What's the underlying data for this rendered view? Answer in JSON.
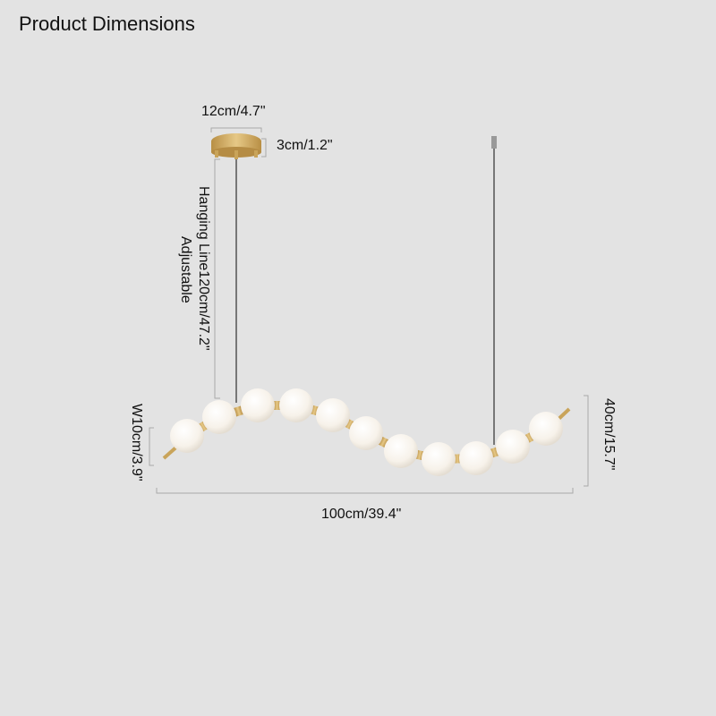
{
  "title": "Product Dimensions",
  "dimensions": {
    "canopy_diameter": "12cm/4.7\"",
    "canopy_height": "3cm/1.2\"",
    "hanging_line": "Hanging Line120cm/47.2\"",
    "hanging_line_note": "Adjustable",
    "globe_width": "W10cm/3.9\"",
    "height": "40cm/15.7\"",
    "length": "100cm/39.4\""
  },
  "colors": {
    "background": "#e3e3e3",
    "brass": "#c9a45a",
    "globe": "#fbf8f2",
    "dimension_line": "#aaaaaa",
    "cable": "#777777"
  }
}
